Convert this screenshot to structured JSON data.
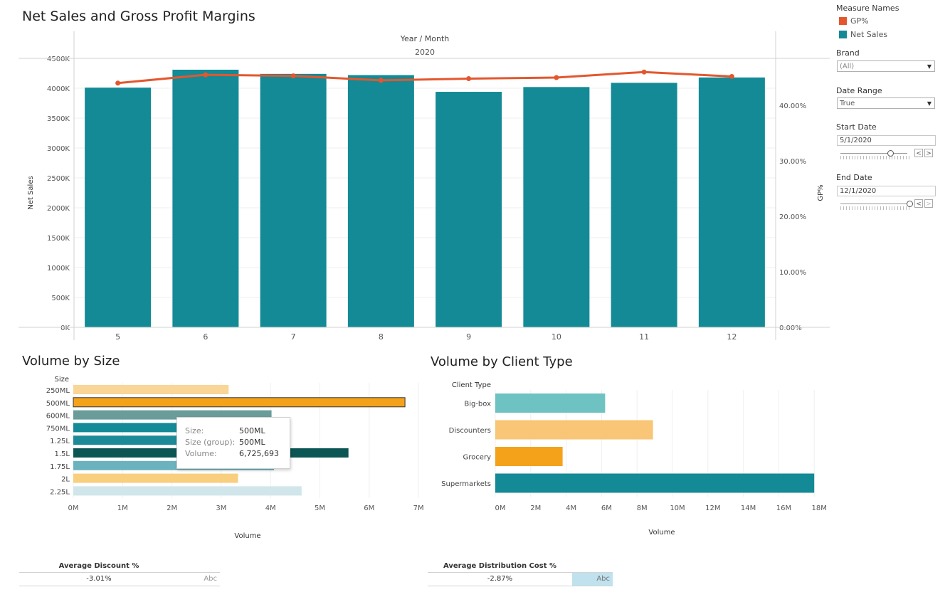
{
  "main_chart": {
    "title": "Net Sales and Gross Profit Margins",
    "header_top": "Year / Month",
    "header_year": "2020",
    "y_left_label": "Net Sales",
    "y_right_label": "GP%",
    "y_left_ticks": [
      "0K",
      "500K",
      "1000K",
      "1500K",
      "2000K",
      "2500K",
      "3000K",
      "3500K",
      "4000K",
      "4500K"
    ],
    "y_right_ticks": [
      "0.00%",
      "10.00%",
      "20.00%",
      "30.00%",
      "40.00%"
    ],
    "bar_color": "#138a96",
    "line_color": "#e4572e"
  },
  "volume_size": {
    "title": "Volume by Size",
    "y_header": "Size",
    "x_label": "Volume",
    "x_ticks": [
      "0M",
      "1M",
      "2M",
      "3M",
      "4M",
      "5M",
      "6M",
      "7M"
    ]
  },
  "volume_client": {
    "title": "Volume by Client Type",
    "y_header": "Client Type",
    "x_label": "Volume",
    "x_ticks": [
      "0M",
      "2M",
      "4M",
      "6M",
      "8M",
      "10M",
      "12M",
      "14M",
      "16M",
      "18M"
    ]
  },
  "chart_data": [
    {
      "type": "bar",
      "title": "Net Sales and Gross Profit Margins",
      "categories": [
        "5",
        "6",
        "7",
        "8",
        "9",
        "10",
        "11",
        "12"
      ],
      "series": [
        {
          "name": "Net Sales",
          "values": [
            4010000,
            4310000,
            4240000,
            4220000,
            3940000,
            4020000,
            4090000,
            4180000
          ]
        },
        {
          "name": "GP%",
          "values": [
            44.0,
            45.5,
            45.3,
            44.5,
            44.8,
            45.0,
            46.0,
            45.2
          ]
        }
      ],
      "xlabel": "Year / Month",
      "ylabel": "Net Sales",
      "y2label": "GP%",
      "ylim": [
        0,
        4500000
      ],
      "y2lim": [
        0,
        40
      ],
      "grid": true
    },
    {
      "type": "bar",
      "title": "Volume by Size",
      "categories": [
        "250ML",
        "500ML",
        "600ML",
        "750ML",
        "1.25L",
        "1.5L",
        "1.75L",
        "2L",
        "2.25L"
      ],
      "values": [
        3150000,
        6725693,
        4020000,
        3800000,
        3800000,
        5580000,
        4070000,
        3340000,
        4630000
      ],
      "colors": [
        "#f9d598",
        "#f5a21b",
        "#6a9c9a",
        "#138a96",
        "#1d8a98",
        "#0b5554",
        "#6ab3be",
        "#f9ce7e",
        "#d1e6ea"
      ],
      "xlabel": "Volume",
      "ylabel": "Size",
      "xlim": [
        0,
        7000000
      ]
    },
    {
      "type": "bar",
      "title": "Volume by Client Type",
      "categories": [
        "Big-box",
        "Discounters",
        "Grocery",
        "Supermarkets"
      ],
      "values": [
        6200000,
        8900000,
        3800000,
        18000000
      ],
      "colors": [
        "#6fc2c2",
        "#f9c576",
        "#f5a21b",
        "#138a96"
      ],
      "xlabel": "Volume",
      "ylabel": "Client Type",
      "xlim": [
        0,
        18000000
      ]
    }
  ],
  "sidebar": {
    "legend_title": "Measure Names",
    "legend": [
      {
        "label": "GP%",
        "color": "#e4572e"
      },
      {
        "label": "Net Sales",
        "color": "#138a96"
      }
    ],
    "brand_label": "Brand",
    "brand_value": "(All)",
    "date_range_label": "Date Range",
    "date_range_value": "True",
    "start_label": "Start Date",
    "start_value": "5/1/2020",
    "start_slider_level": 0.7,
    "end_label": "End Date",
    "end_value": "12/1/2020",
    "end_slider_level": 1.0
  },
  "tooltip": {
    "size_key": "Size:",
    "size_val": "500ML",
    "group_key": "Size (group):",
    "group_val": "500ML",
    "volume_key": "Volume:",
    "volume_val": "6,725,693"
  },
  "kpis": {
    "discount": {
      "label": "Average Discount %",
      "value": "-3.01%",
      "abc": "Abc"
    },
    "distribution": {
      "label": "Average Distribution Cost %",
      "value": "-2.87%",
      "abc": "Abc"
    }
  }
}
